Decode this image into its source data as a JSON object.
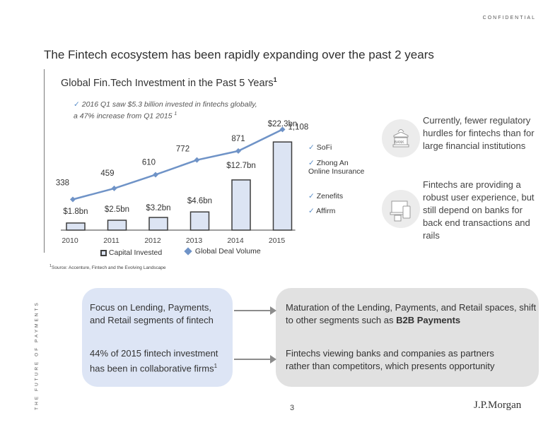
{
  "header": {
    "confidential": "CONFIDENTIAL",
    "title": "The Fintech ecosystem has been rapidly expanding over the past 2 years",
    "chart_title": "Global Fin.Tech Investment in the Past 5 Years",
    "chart_title_sup": "1"
  },
  "side_label": "THE FUTURE OF PAYMENTS",
  "chart_note": {
    "check": "✓",
    "text": "2016 Q1 saw $5.3 billion invested in fintechs globally, a 47% increase from Q1 2015",
    "sup": "1"
  },
  "companies": [
    "SoFi",
    "Zhong An Online Insurance",
    "Zenefits",
    "Affirm"
  ],
  "check_mark": "✓",
  "legend": {
    "capital": "Capital Invested",
    "deals": "Global Deal Volume"
  },
  "colors": {
    "bar_fill": "#dce4f3",
    "bar_stroke": "#3d3d3d",
    "line": "#6f93c7",
    "marker": "#6f93c7",
    "panel_blue": "#dde5f5",
    "panel_gray": "#e1e1e1"
  },
  "chart_data": {
    "type": "bar",
    "categories": [
      "2010",
      "2011",
      "2012",
      "2013",
      "2014",
      "2015"
    ],
    "series": [
      {
        "name": "Capital Invested",
        "values": [
          1.8,
          2.5,
          3.2,
          4.6,
          12.7,
          22.3
        ],
        "labels": [
          "$1.8bn",
          "$2.5bn",
          "$3.2bn",
          "$4.6bn",
          "$12.7bn",
          "$22.3bn"
        ]
      },
      {
        "name": "Global Deal Volume",
        "type": "line",
        "values": [
          338,
          459,
          610,
          772,
          871,
          1108
        ],
        "labels": [
          "338",
          "459",
          "610",
          "772",
          "871",
          "1,108"
        ]
      }
    ],
    "title": "Global Fin.Tech Investment in the Past 5 Years",
    "xlabel": "",
    "ylabel": "",
    "ylim_bars": [
      0,
      25
    ],
    "ylim_line": [
      0,
      1150
    ]
  },
  "right_texts": {
    "regulatory": "Currently, fewer regulatory hurdles for fintechs than for large financial institutions",
    "experience": "Fintechs are providing a robust user experience, but still depend on banks for back end transactions and rails",
    "bank_icon_label": "BANK"
  },
  "source": {
    "sup": "1",
    "text": "Source: Accenture, Fintech and the Evolving Landscape"
  },
  "panels": {
    "left_top": "Focus on Lending, Payments, and Retail segments of fintech",
    "left_bottom_pct": "44%",
    "left_bottom_text": "of 2015 fintech investment has been in collaborative firms",
    "left_bottom_sup": "1",
    "right_top_text": "Maturation of the Lending, Payments, and Retail spaces, shift to other segments such as",
    "right_top_bold": "B2B Payments",
    "right_bottom": "Fintechs viewing banks and companies as partners rather than competitors, which presents opportunity"
  },
  "footer": {
    "page": "3",
    "logo": "J.P.Morgan"
  }
}
